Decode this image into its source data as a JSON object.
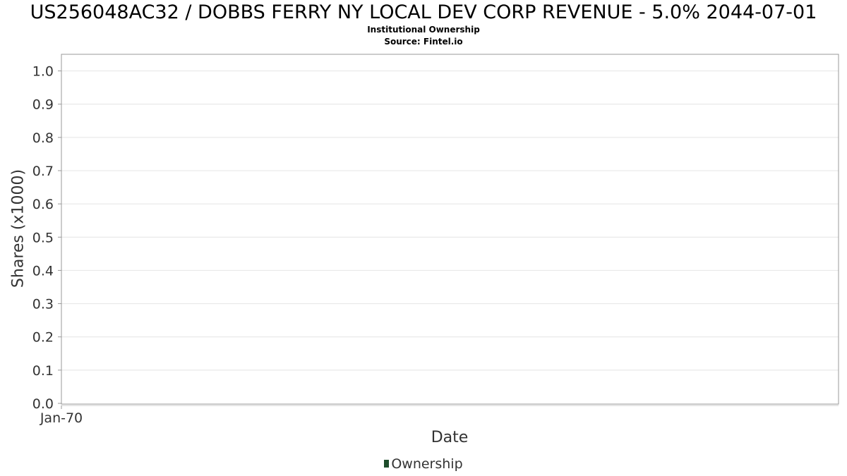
{
  "chart_data": {
    "type": "line",
    "title": "US256048AC32 / DOBBS FERRY NY LOCAL DEV CORP REVENUE - 5.0% 2044-07-01",
    "subtitle": "Institutional Ownership",
    "source": "Source: Fintel.io",
    "xlabel": "Date",
    "ylabel": "Shares (x1000)",
    "x_ticks": [
      "Jan-70"
    ],
    "y_ticks": [
      "0.0",
      "0.1",
      "0.2",
      "0.3",
      "0.4",
      "0.5",
      "0.6",
      "0.7",
      "0.8",
      "0.9",
      "1.0"
    ],
    "ylim": [
      0,
      1.05
    ],
    "grid": true,
    "legend_position": "bottom",
    "series": [
      {
        "name": "Ownership",
        "color": "#1e4d2b",
        "x": [],
        "values": []
      }
    ]
  }
}
